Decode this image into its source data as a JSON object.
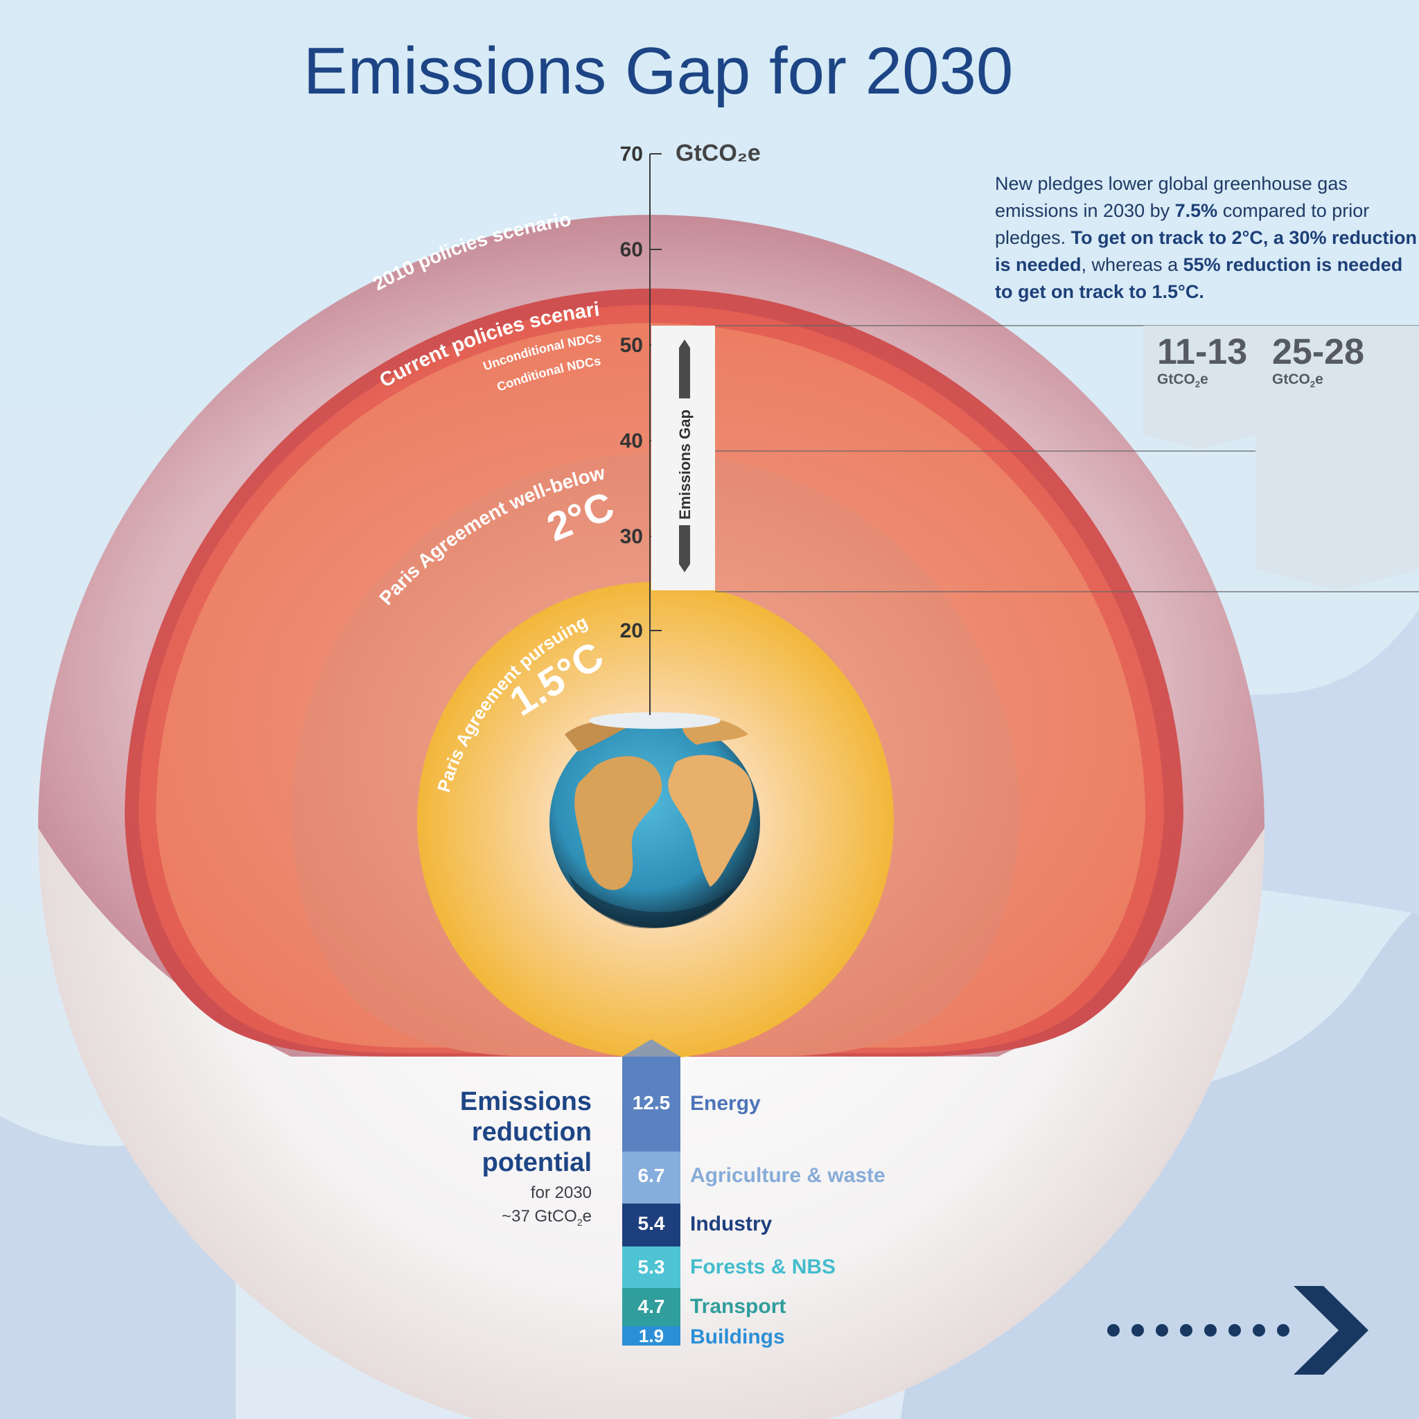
{
  "title": "Emissions Gap for 2030",
  "axis": {
    "unit": "GtCO₂e",
    "ticks": [
      "70",
      "60",
      "50",
      "40",
      "30",
      "20"
    ]
  },
  "scenarios": {
    "s2010": "2010 policies scenario",
    "current": "Current policies scenario",
    "unconditional": "Unconditional NDCs",
    "conditional": "Conditional NDCs",
    "two_c_line": "Paris Agreement well-below",
    "two_c_temp": "2°C",
    "one5_line": "Paris Agreement pursuing",
    "one5_temp": "1.5°C"
  },
  "gap_label": "Emissions Gap",
  "note": {
    "p1": "New pledges lower global greenhouse gas emissions in 2030 by ",
    "b1": "7.5%",
    "p2": " compared to prior pledges. ",
    "b2": "To get on track to 2°C, a 30% reduction is needed",
    "p3": ", whereas a ",
    "b3": "55% reduction is needed to get on track to 1.5°C."
  },
  "gaps": [
    {
      "value": "11-13",
      "unit": "GtCO",
      "unit_sub": "2",
      "unit_tail": "e"
    },
    {
      "value": "25-28",
      "unit": "GtCO",
      "unit_sub": "2",
      "unit_tail": "e"
    }
  ],
  "reduction": {
    "title": "Emissions reduction potential",
    "subtitle": "for 2030",
    "total": "~37 GtCO",
    "total_sub": "2",
    "total_tail": "e"
  },
  "sectors": [
    {
      "value": "12.5",
      "label": "Energy",
      "color": "#5b82c0",
      "text_color": "#4c74b8"
    },
    {
      "value": "6.7",
      "label": "Agriculture & waste",
      "color": "#86aedd",
      "text_color": "#86acd8"
    },
    {
      "value": "5.4",
      "label": "Industry",
      "color": "#1e3f7e",
      "text_color": "#1e3f7e"
    },
    {
      "value": "5.3",
      "label": "Forests & NBS",
      "color": "#4ec3d3",
      "text_color": "#43bccd"
    },
    {
      "value": "4.7",
      "label": "Transport",
      "color": "#2f9e9c",
      "text_color": "#2f9e9c"
    },
    {
      "value": "1.9",
      "label": "Buildings",
      "color": "#2b8fd6",
      "text_color": "#2b8fd6"
    }
  ],
  "colors": {
    "title": "#1d4585",
    "ring_2010": "#c07c8c",
    "ring_current": "#d9504e",
    "ring_2c": "#e88672",
    "ring_15c": "#f3c04a",
    "nav_arrow": "#183862"
  }
}
